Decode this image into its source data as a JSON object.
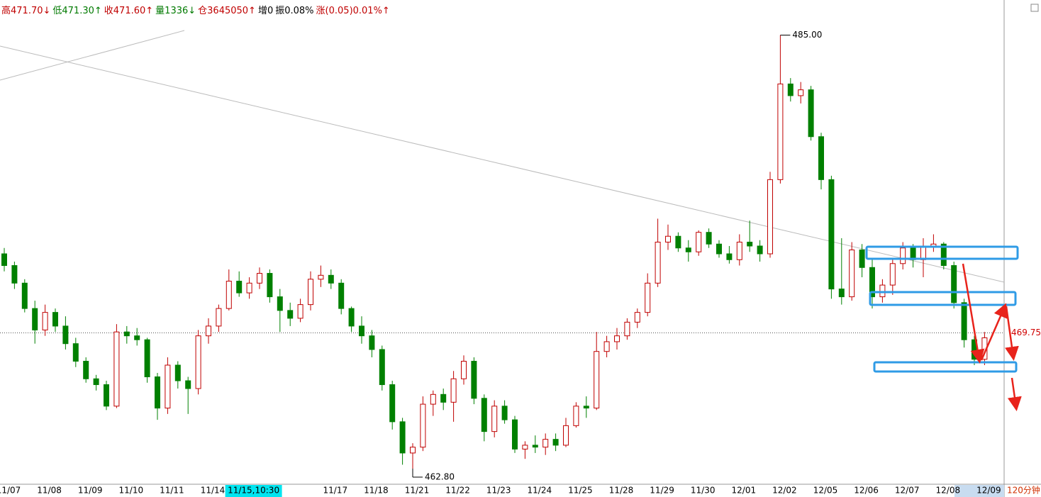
{
  "header": [
    "高471.70↓",
    "低471.30↑",
    "收471.60↑",
    "量1336↓",
    "仓3645050↑",
    "增0",
    "振0.08%",
    "涨(0.05)0.01%↑"
  ],
  "chart_data": {
    "type": "candlestick",
    "period": "120分钟",
    "up_color": "#c00000",
    "down_color": "#008000",
    "ylim": [
      462,
      486
    ],
    "last_price": 469.75,
    "annotations": [
      {
        "value": 485,
        "label": "485.00"
      },
      {
        "value": 462.8,
        "label": "462.80"
      }
    ],
    "categories": [
      "11/07",
      null,
      null,
      null,
      "11/08",
      null,
      null,
      null,
      "11/09",
      null,
      null,
      null,
      "11/10",
      null,
      null,
      null,
      "11/11",
      null,
      null,
      null,
      "11/14",
      null,
      null,
      null,
      "11/15,10:30",
      null,
      null,
      null,
      null,
      null,
      null,
      null,
      "11/17",
      null,
      null,
      null,
      "11/18",
      null,
      null,
      null,
      "11/21",
      null,
      null,
      null,
      "11/22",
      null,
      null,
      null,
      "11/23",
      null,
      null,
      null,
      "11/24",
      null,
      null,
      null,
      "11/25",
      null,
      null,
      null,
      "11/28",
      null,
      null,
      null,
      "11/29",
      null,
      null,
      null,
      "11/30",
      null,
      null,
      null,
      "12/01",
      null,
      null,
      null,
      "12/02",
      null,
      null,
      null,
      "12/05",
      null,
      null,
      null,
      "12/06",
      null,
      null,
      null,
      "12/07",
      null,
      null,
      null,
      "12/08",
      null,
      null,
      null,
      "12/09"
    ],
    "open": [
      473.8,
      473.2,
      472.3,
      471.0,
      469.9,
      470.8,
      470.1,
      469.2,
      468.3,
      467.4,
      467.1,
      466.0,
      469.8,
      469.6,
      469.4,
      467.5,
      465.9,
      468.1,
      467.3,
      466.9,
      469.6,
      470.1,
      471.0,
      472.4,
      471.8,
      472.3,
      472.8,
      471.6,
      470.9,
      470.5,
      471.2,
      472.5,
      472.7,
      472.3,
      471.0,
      470.1,
      469.6,
      468.9,
      467.1,
      465.2,
      463.6,
      463.9,
      466.1,
      466.6,
      466.2,
      467.4,
      468.3,
      466.4,
      464.7,
      466.0,
      465.3,
      463.8,
      464.0,
      463.9,
      464.3,
      464.0,
      465.0,
      466.0,
      465.9,
      468.8,
      469.3,
      469.6,
      470.3,
      470.8,
      472.3,
      474.4,
      474.7,
      474.1,
      473.9,
      474.9,
      474.3,
      473.8,
      473.5,
      474.4,
      474.2,
      473.8,
      477.6,
      482.5,
      481.9,
      482.2,
      479.8,
      477.6,
      472.0,
      471.6,
      474.0,
      473.1,
      471.6,
      472.2,
      473.3,
      474.1,
      473.5,
      474.2,
      474.3,
      473.2,
      471.3,
      469.4,
      468.4
    ],
    "high": [
      474.1,
      473.4,
      472.5,
      471.4,
      471.2,
      471.0,
      470.6,
      469.5,
      468.5,
      467.6,
      467.3,
      470.2,
      470.1,
      470.0,
      469.5,
      467.7,
      468.5,
      468.3,
      467.5,
      469.9,
      470.5,
      471.2,
      473.0,
      472.9,
      472.6,
      473.1,
      473.0,
      472.0,
      471.3,
      471.5,
      472.9,
      473.2,
      473.0,
      472.5,
      471.1,
      470.6,
      469.9,
      469.1,
      467.3,
      465.4,
      464.1,
      466.5,
      466.8,
      466.9,
      467.8,
      468.6,
      468.5,
      466.6,
      466.3,
      466.3,
      465.5,
      464.2,
      464.5,
      464.6,
      464.6,
      465.4,
      466.2,
      466.5,
      469.8,
      469.6,
      470.0,
      470.5,
      471.0,
      472.8,
      475.6,
      475.3,
      474.9,
      474.5,
      475.0,
      475.1,
      474.5,
      474.2,
      474.8,
      475.5,
      474.5,
      478.0,
      485.0,
      482.8,
      482.6,
      482.4,
      480.0,
      477.8,
      474.6,
      474.4,
      474.3,
      473.6,
      472.5,
      473.6,
      474.4,
      474.3,
      474.6,
      474.8,
      474.4,
      473.4,
      471.5,
      469.6,
      469.8
    ],
    "low": [
      472.9,
      472.0,
      470.8,
      469.2,
      469.6,
      469.8,
      468.9,
      468.0,
      467.2,
      466.8,
      465.8,
      465.9,
      469.2,
      469.1,
      467.2,
      465.3,
      465.6,
      466.9,
      465.6,
      466.6,
      469.2,
      469.8,
      470.9,
      471.6,
      471.5,
      472.0,
      471.3,
      469.8,
      470.1,
      470.3,
      470.9,
      472.1,
      472.0,
      470.7,
      469.8,
      469.2,
      468.5,
      466.8,
      464.8,
      463.0,
      462.8,
      463.7,
      465.5,
      465.8,
      465.2,
      467.1,
      466.1,
      464.2,
      464.4,
      465.1,
      463.6,
      463.3,
      463.6,
      463.5,
      463.7,
      463.9,
      464.9,
      465.4,
      465.8,
      468.5,
      468.9,
      469.4,
      470.0,
      470.6,
      472.1,
      474.0,
      473.9,
      473.4,
      473.7,
      474.1,
      473.6,
      473.3,
      473.2,
      473.9,
      473.4,
      473.6,
      477.4,
      481.6,
      481.5,
      479.6,
      477.1,
      471.5,
      471.2,
      471.4,
      472.6,
      471.0,
      471.3,
      471.7,
      473.0,
      473.1,
      472.6,
      473.9,
      473.0,
      471.0,
      469.0,
      468.1,
      468.1
    ],
    "close": [
      473.2,
      472.3,
      471.0,
      469.9,
      470.8,
      470.1,
      469.2,
      468.3,
      467.4,
      467.1,
      466.0,
      469.8,
      469.6,
      469.4,
      467.5,
      465.9,
      468.1,
      467.3,
      466.9,
      469.6,
      470.1,
      471.0,
      472.4,
      471.8,
      472.3,
      472.8,
      471.6,
      470.9,
      470.5,
      471.2,
      472.5,
      472.7,
      472.3,
      471.0,
      470.1,
      469.6,
      468.9,
      467.1,
      465.2,
      463.6,
      463.9,
      466.1,
      466.6,
      466.2,
      467.4,
      468.3,
      466.4,
      464.7,
      466.0,
      465.3,
      463.8,
      464.0,
      463.9,
      464.3,
      464.0,
      465.0,
      466.0,
      465.9,
      468.8,
      469.3,
      469.6,
      470.3,
      470.8,
      472.3,
      474.4,
      474.7,
      474.1,
      473.9,
      474.9,
      474.3,
      473.8,
      473.5,
      474.4,
      474.2,
      473.8,
      477.6,
      482.5,
      481.9,
      482.2,
      479.8,
      477.6,
      472.0,
      471.6,
      474.0,
      473.1,
      471.6,
      472.2,
      473.3,
      474.1,
      473.5,
      474.2,
      474.3,
      473.2,
      471.3,
      469.4,
      468.4,
      469.5
    ]
  }
}
